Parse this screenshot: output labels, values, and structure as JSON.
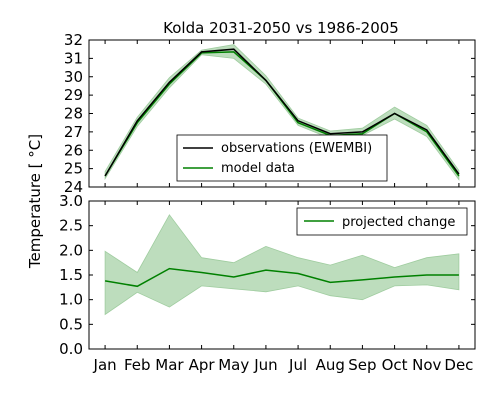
{
  "chart_data": {
    "title": "Kolda 2031-2050 vs 1986-2005",
    "ylabel": "Temperature [$^\\circ C$]",
    "ylabel_text": "Temperature [ °C]",
    "categories": [
      "Jan",
      "Feb",
      "Mar",
      "Apr",
      "May",
      "Jun",
      "Jul",
      "Aug",
      "Sep",
      "Oct",
      "Nov",
      "Dec"
    ],
    "colors": {
      "observations": "#000000",
      "model": "#008000",
      "band_fill": "#b2d8b2"
    },
    "panels": [
      {
        "type": "line",
        "ylim": [
          24,
          32
        ],
        "yticks": [
          "24",
          "25",
          "26",
          "27",
          "28",
          "29",
          "30",
          "31",
          "32"
        ],
        "legend_placement": "lower-center",
        "series": [
          {
            "name": "observations (EWEMBI)",
            "values": [
              24.6,
              27.6,
              29.7,
              31.35,
              31.5,
              29.8,
              27.6,
              26.9,
              27.0,
              28.0,
              27.1,
              24.7
            ]
          },
          {
            "name": "model data",
            "values": [
              24.6,
              27.5,
              29.6,
              31.3,
              31.35,
              29.8,
              27.5,
              26.8,
              26.9,
              28.0,
              27.0,
              24.6
            ],
            "band_low": [
              24.45,
              27.3,
              29.4,
              31.2,
              31.0,
              29.6,
              27.35,
              26.65,
              26.8,
              27.7,
              26.75,
              24.4
            ],
            "band_high": [
              24.85,
              27.8,
              29.95,
              31.45,
              31.75,
              30.05,
              27.75,
              27.05,
              27.2,
              28.35,
              27.35,
              24.9
            ]
          }
        ]
      },
      {
        "type": "area",
        "ylim": [
          0.0,
          3.0
        ],
        "yticks": [
          "0.0",
          "0.5",
          "1.0",
          "1.5",
          "2.0",
          "2.5",
          "3.0"
        ],
        "legend_placement": "top-right",
        "series": [
          {
            "name": "projected change",
            "values": [
              1.38,
              1.27,
              1.63,
              1.55,
              1.46,
              1.6,
              1.53,
              1.35,
              1.4,
              1.46,
              1.5,
              1.5
            ],
            "band_low": [
              0.7,
              1.15,
              0.85,
              1.28,
              1.22,
              1.16,
              1.28,
              1.08,
              1.0,
              1.28,
              1.3,
              1.2
            ],
            "band_high": [
              1.98,
              1.55,
              2.72,
              1.85,
              1.75,
              2.08,
              1.85,
              1.7,
              1.9,
              1.65,
              1.85,
              1.93
            ]
          }
        ]
      }
    ]
  }
}
